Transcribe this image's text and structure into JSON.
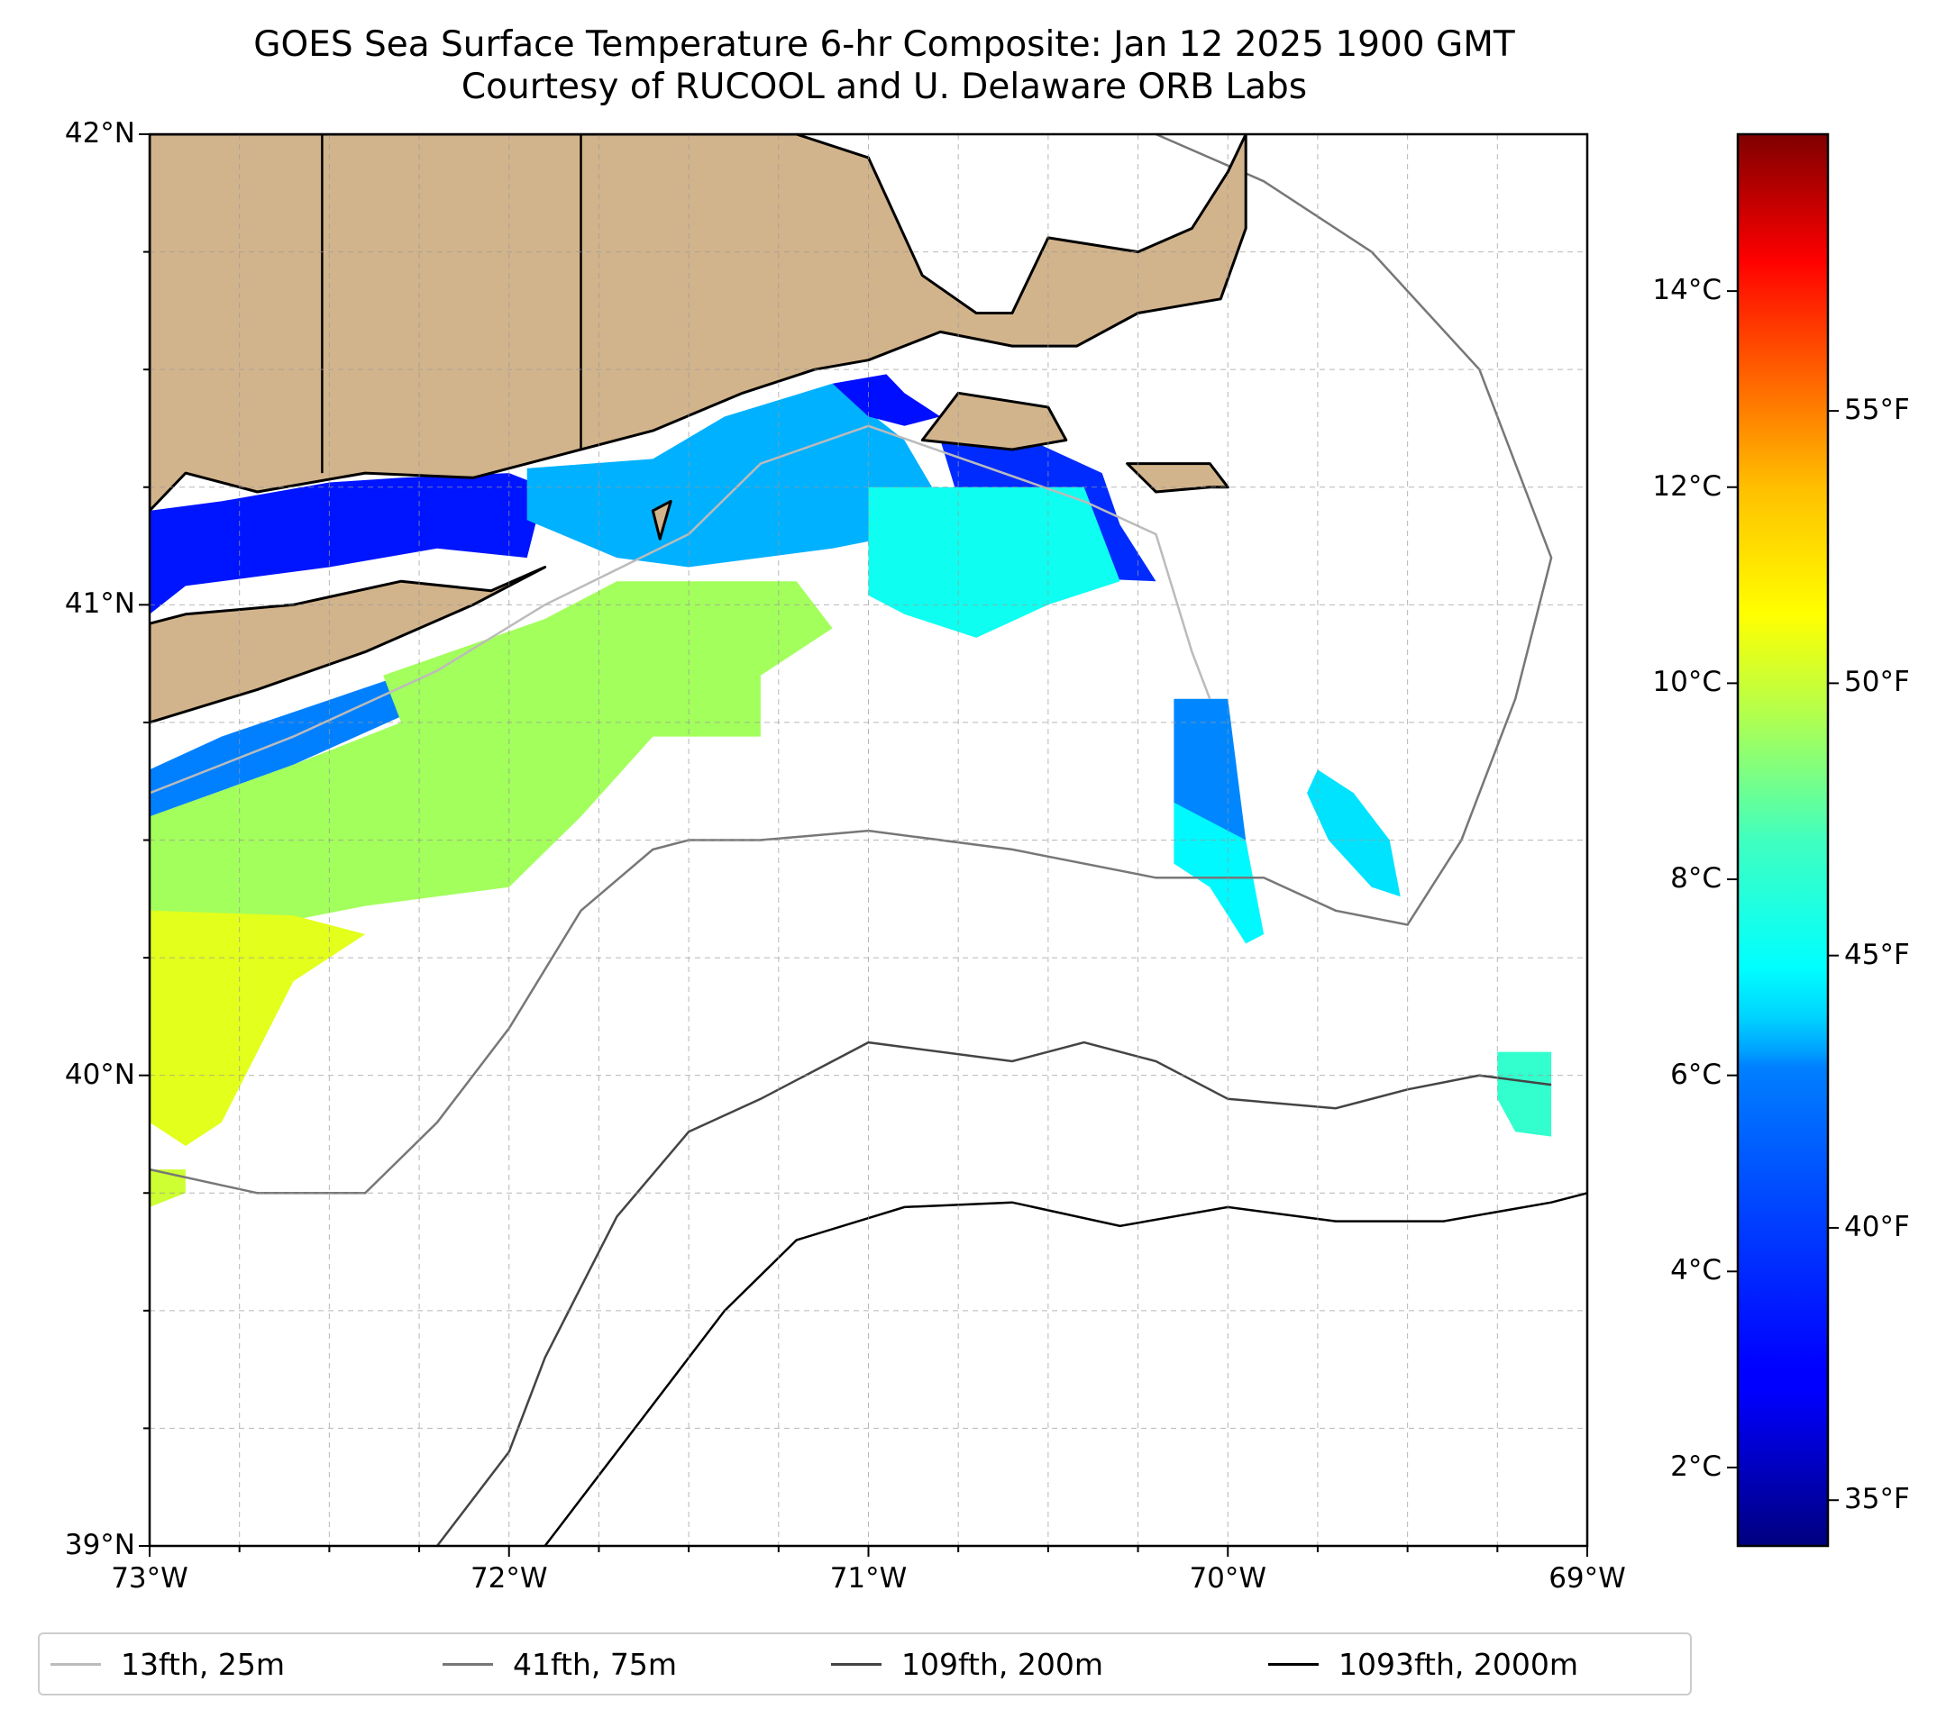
{
  "title": {
    "line1": "GOES Sea Surface Temperature 6-hr Composite: Jan 12 2025 1900 GMT",
    "line2": "Courtesy of RUCOOL and U. Delaware ORB Labs"
  },
  "map": {
    "extent": {
      "lon_min": -73,
      "lon_max": -69,
      "lat_min": 39,
      "lat_max": 42
    },
    "land_color": "#D2B48C",
    "lat_labels": [
      {
        "lat": 42,
        "label": "42°N"
      },
      {
        "lat": 41,
        "label": "41°N"
      },
      {
        "lat": 40,
        "label": "40°N"
      },
      {
        "lat": 39,
        "label": "39°N"
      }
    ],
    "lon_labels": [
      {
        "lon": -73,
        "label": "73°W"
      },
      {
        "lon": -72,
        "label": "72°W"
      },
      {
        "lon": -71,
        "label": "71°W"
      },
      {
        "lon": -70,
        "label": "70°W"
      },
      {
        "lon": -69,
        "label": "69°W"
      }
    ],
    "sst_patches": [
      {
        "name": "long-island-sound-west",
        "temp_c": 3.3,
        "points": [
          [
            -73,
            41.2
          ],
          [
            -72.8,
            41.22
          ],
          [
            -72.5,
            41.26
          ],
          [
            -72.3,
            41.27
          ],
          [
            -72.0,
            41.28
          ],
          [
            -71.9,
            41.25
          ],
          [
            -71.95,
            41.1
          ],
          [
            -72.2,
            41.12
          ],
          [
            -72.5,
            41.08
          ],
          [
            -72.9,
            41.04
          ],
          [
            -73,
            40.98
          ]
        ]
      },
      {
        "name": "block-island-sound",
        "temp_c": 5.5,
        "points": [
          [
            -71.95,
            41.29
          ],
          [
            -71.6,
            41.31
          ],
          [
            -71.4,
            41.4
          ],
          [
            -71.1,
            41.47
          ],
          [
            -70.9,
            41.35
          ],
          [
            -70.8,
            41.22
          ],
          [
            -70.9,
            41.15
          ],
          [
            -71.1,
            41.12
          ],
          [
            -71.3,
            41.1
          ],
          [
            -71.5,
            41.08
          ],
          [
            -71.7,
            41.1
          ],
          [
            -71.95,
            41.18
          ]
        ]
      },
      {
        "name": "buzzards-bay",
        "temp_c": 3.2,
        "points": [
          [
            -71.1,
            41.47
          ],
          [
            -70.95,
            41.49
          ],
          [
            -70.9,
            41.45
          ],
          [
            -70.8,
            41.4
          ],
          [
            -70.9,
            41.38
          ],
          [
            -71.0,
            41.4
          ]
        ]
      },
      {
        "name": "nantucket-sound-block",
        "temp_c": 3.6,
        "points": [
          [
            -70.8,
            41.35
          ],
          [
            -70.55,
            41.35
          ],
          [
            -70.35,
            41.28
          ],
          [
            -70.3,
            41.17
          ],
          [
            -70.2,
            41.05
          ],
          [
            -70.5,
            41.06
          ],
          [
            -70.7,
            41.1
          ]
        ]
      },
      {
        "name": "shelf-south-ri",
        "temp_c": 6.8,
        "points": [
          [
            -71.0,
            41.25
          ],
          [
            -70.4,
            41.25
          ],
          [
            -70.3,
            41.05
          ],
          [
            -70.5,
            41.0
          ],
          [
            -70.7,
            40.93
          ],
          [
            -70.9,
            40.98
          ],
          [
            -71.0,
            41.02
          ]
        ]
      },
      {
        "name": "south-shore-li-blue",
        "temp_c": 4.8,
        "points": [
          [
            -72.8,
            40.72
          ],
          [
            -72.3,
            40.85
          ],
          [
            -72.25,
            40.78
          ],
          [
            -72.6,
            40.66
          ],
          [
            -73,
            40.55
          ],
          [
            -73,
            40.65
          ]
        ]
      },
      {
        "name": "shelf-green-core",
        "temp_c": 8.9,
        "points": [
          [
            -72.35,
            40.85
          ],
          [
            -71.9,
            40.97
          ],
          [
            -71.7,
            41.05
          ],
          [
            -71.2,
            41.05
          ],
          [
            -71.1,
            40.95
          ],
          [
            -71.3,
            40.85
          ],
          [
            -71.3,
            40.72
          ],
          [
            -71.6,
            40.72
          ],
          [
            -71.8,
            40.55
          ],
          [
            -72.0,
            40.4
          ],
          [
            -72.4,
            40.36
          ],
          [
            -72.8,
            40.3
          ],
          [
            -73,
            40.35
          ],
          [
            -73,
            40.55
          ],
          [
            -72.6,
            40.66
          ],
          [
            -72.3,
            40.75
          ]
        ]
      },
      {
        "name": "shelf-yellow-south",
        "temp_c": 9.8,
        "points": [
          [
            -73,
            40.35
          ],
          [
            -72.6,
            40.34
          ],
          [
            -72.4,
            40.3
          ],
          [
            -72.6,
            40.2
          ],
          [
            -72.7,
            40.05
          ],
          [
            -72.8,
            39.9
          ],
          [
            -72.9,
            39.85
          ],
          [
            -73,
            39.9
          ]
        ]
      },
      {
        "name": "eddy-east",
        "temp_c": 4.9,
        "points": [
          [
            -70.15,
            40.8
          ],
          [
            -70.0,
            40.8
          ],
          [
            -69.97,
            40.62
          ],
          [
            -69.95,
            40.5
          ],
          [
            -70.05,
            40.45
          ],
          [
            -70.15,
            40.58
          ]
        ]
      },
      {
        "name": "eddy-east-tail",
        "temp_c": 6.5,
        "points": [
          [
            -70.15,
            40.58
          ],
          [
            -69.95,
            40.5
          ],
          [
            -69.9,
            40.3
          ],
          [
            -69.95,
            40.28
          ],
          [
            -70.05,
            40.4
          ],
          [
            -70.15,
            40.45
          ]
        ]
      },
      {
        "name": "eddy-far-east",
        "temp_c": 6.2,
        "points": [
          [
            -69.75,
            40.65
          ],
          [
            -69.65,
            40.6
          ],
          [
            -69.55,
            40.5
          ],
          [
            -69.52,
            40.38
          ],
          [
            -69.6,
            40.4
          ],
          [
            -69.72,
            40.5
          ],
          [
            -69.78,
            40.6
          ]
        ]
      },
      {
        "name": "slope-patch",
        "temp_c": 7.3,
        "points": [
          [
            -69.25,
            40.05
          ],
          [
            -69.1,
            40.05
          ],
          [
            -69.1,
            39.87
          ],
          [
            -69.2,
            39.88
          ],
          [
            -69.25,
            39.95
          ]
        ]
      },
      {
        "name": "nj-corner",
        "temp_c": 9.5,
        "points": [
          [
            -73,
            39.8
          ],
          [
            -72.9,
            39.8
          ],
          [
            -72.9,
            39.75
          ],
          [
            -73,
            39.72
          ]
        ]
      }
    ],
    "land_polygons": [
      {
        "name": "new-england",
        "points": [
          [
            -73,
            42
          ],
          [
            -71.2,
            42
          ],
          [
            -71.0,
            41.95
          ],
          [
            -70.85,
            41.7
          ],
          [
            -70.7,
            41.62
          ],
          [
            -70.6,
            41.62
          ],
          [
            -70.5,
            41.78
          ],
          [
            -70.25,
            41.75
          ],
          [
            -70.1,
            41.8
          ],
          [
            -70.0,
            41.92
          ],
          [
            -69.95,
            42
          ],
          [
            -69.95,
            41.8
          ],
          [
            -70.02,
            41.65
          ],
          [
            -70.25,
            41.62
          ],
          [
            -70.42,
            41.55
          ],
          [
            -70.6,
            41.55
          ],
          [
            -70.8,
            41.58
          ],
          [
            -71.0,
            41.52
          ],
          [
            -71.15,
            41.5
          ],
          [
            -71.35,
            41.45
          ],
          [
            -71.6,
            41.37
          ],
          [
            -71.85,
            41.32
          ],
          [
            -72.1,
            41.27
          ],
          [
            -72.4,
            41.28
          ],
          [
            -72.7,
            41.24
          ],
          [
            -72.9,
            41.28
          ],
          [
            -73,
            41.2
          ]
        ]
      },
      {
        "name": "long-island",
        "points": [
          [
            -73,
            40.75
          ],
          [
            -72.7,
            40.82
          ],
          [
            -72.4,
            40.9
          ],
          [
            -72.1,
            41.0
          ],
          [
            -71.9,
            41.08
          ],
          [
            -72.05,
            41.03
          ],
          [
            -72.3,
            41.05
          ],
          [
            -72.6,
            41.0
          ],
          [
            -72.9,
            40.98
          ],
          [
            -73,
            40.96
          ]
        ]
      },
      {
        "name": "marthas-vineyard",
        "points": [
          [
            -70.85,
            41.35
          ],
          [
            -70.75,
            41.45
          ],
          [
            -70.5,
            41.42
          ],
          [
            -70.45,
            41.35
          ],
          [
            -70.6,
            41.33
          ]
        ]
      },
      {
        "name": "nantucket",
        "points": [
          [
            -70.28,
            41.3
          ],
          [
            -70.05,
            41.3
          ],
          [
            -70.0,
            41.25
          ],
          [
            -70.05,
            41.25
          ],
          [
            -70.2,
            41.24
          ]
        ]
      },
      {
        "name": "block-island",
        "points": [
          [
            -71.6,
            41.2
          ],
          [
            -71.55,
            41.22
          ],
          [
            -71.58,
            41.14
          ]
        ]
      }
    ],
    "isobaths": [
      {
        "name": "25m",
        "color": "#bbbbbb",
        "points": [
          [
            -73,
            40.6
          ],
          [
            -72.6,
            40.72
          ],
          [
            -72.2,
            40.86
          ],
          [
            -71.9,
            41.0
          ],
          [
            -71.5,
            41.15
          ],
          [
            -71.3,
            41.3
          ],
          [
            -71.0,
            41.38
          ],
          [
            -70.7,
            41.3
          ],
          [
            -70.4,
            41.22
          ],
          [
            -70.2,
            41.15
          ],
          [
            -70.1,
            40.9
          ],
          [
            -70.05,
            40.8
          ]
        ]
      },
      {
        "name": "75m",
        "color": "#777777",
        "points": [
          [
            -73,
            39.8
          ],
          [
            -72.7,
            39.75
          ],
          [
            -72.4,
            39.75
          ],
          [
            -72.2,
            39.9
          ],
          [
            -72.0,
            40.1
          ],
          [
            -71.8,
            40.35
          ],
          [
            -71.6,
            40.48
          ],
          [
            -71.5,
            40.5
          ],
          [
            -71.3,
            40.5
          ],
          [
            -71.0,
            40.52
          ],
          [
            -70.6,
            40.48
          ],
          [
            -70.2,
            40.42
          ],
          [
            -69.9,
            40.42
          ],
          [
            -69.7,
            40.35
          ],
          [
            -69.5,
            40.32
          ],
          [
            -69.35,
            40.5
          ],
          [
            -69.2,
            40.8
          ],
          [
            -69.1,
            41.1
          ],
          [
            -69.3,
            41.5
          ],
          [
            -69.6,
            41.75
          ],
          [
            -69.9,
            41.9
          ],
          [
            -70.2,
            42
          ]
        ]
      },
      {
        "name": "200m",
        "color": "#444444",
        "points": [
          [
            -72.2,
            39
          ]
        ],
        "extra": [
          [
            -72.2,
            39
          ],
          [
            -72.0,
            39.2
          ],
          [
            -71.9,
            39.4
          ],
          [
            -71.7,
            39.7
          ],
          [
            -71.5,
            39.88
          ],
          [
            -71.3,
            39.95
          ],
          [
            -71.0,
            40.07
          ],
          [
            -70.6,
            40.03
          ],
          [
            -70.4,
            40.07
          ],
          [
            -70.2,
            40.03
          ],
          [
            -70.0,
            39.95
          ],
          [
            -69.7,
            39.93
          ],
          [
            -69.5,
            39.97
          ],
          [
            -69.3,
            40.0
          ],
          [
            -69.1,
            39.98
          ]
        ]
      },
      {
        "name": "2000m",
        "color": "#000000",
        "points": [
          [
            -71.9,
            39
          ],
          [
            -71.6,
            39.3
          ],
          [
            -71.4,
            39.5
          ],
          [
            -71.2,
            39.65
          ],
          [
            -70.9,
            39.72
          ],
          [
            -70.6,
            39.73
          ],
          [
            -70.3,
            39.68
          ],
          [
            -70.0,
            39.72
          ],
          [
            -69.7,
            39.69
          ],
          [
            -69.4,
            39.69
          ],
          [
            -69.1,
            39.73
          ],
          [
            -69,
            39.75
          ]
        ]
      }
    ]
  },
  "colorbar": {
    "vmin_c": 1.2,
    "vmax_c": 15.6,
    "colormap": "jet",
    "celsius_ticks": [
      {
        "value": 2,
        "label": "2°C"
      },
      {
        "value": 4,
        "label": "4°C"
      },
      {
        "value": 6,
        "label": "6°C"
      },
      {
        "value": 8,
        "label": "8°C"
      },
      {
        "value": 10,
        "label": "10°C"
      },
      {
        "value": 12,
        "label": "12°C"
      },
      {
        "value": 14,
        "label": "14°C"
      }
    ],
    "fahrenheit_ticks": [
      {
        "value": 35,
        "label": "35°F"
      },
      {
        "value": 40,
        "label": "40°F"
      },
      {
        "value": 45,
        "label": "45°F"
      },
      {
        "value": 50,
        "label": "50°F"
      },
      {
        "value": 55,
        "label": "55°F"
      }
    ]
  },
  "legend": {
    "items": [
      {
        "label": "13fth, 25m",
        "color": "#bbbbbb"
      },
      {
        "label": "41fth, 75m",
        "color": "#777777"
      },
      {
        "label": "109fth, 200m",
        "color": "#444444"
      },
      {
        "label": "1093fth, 2000m",
        "color": "#000000"
      }
    ]
  }
}
